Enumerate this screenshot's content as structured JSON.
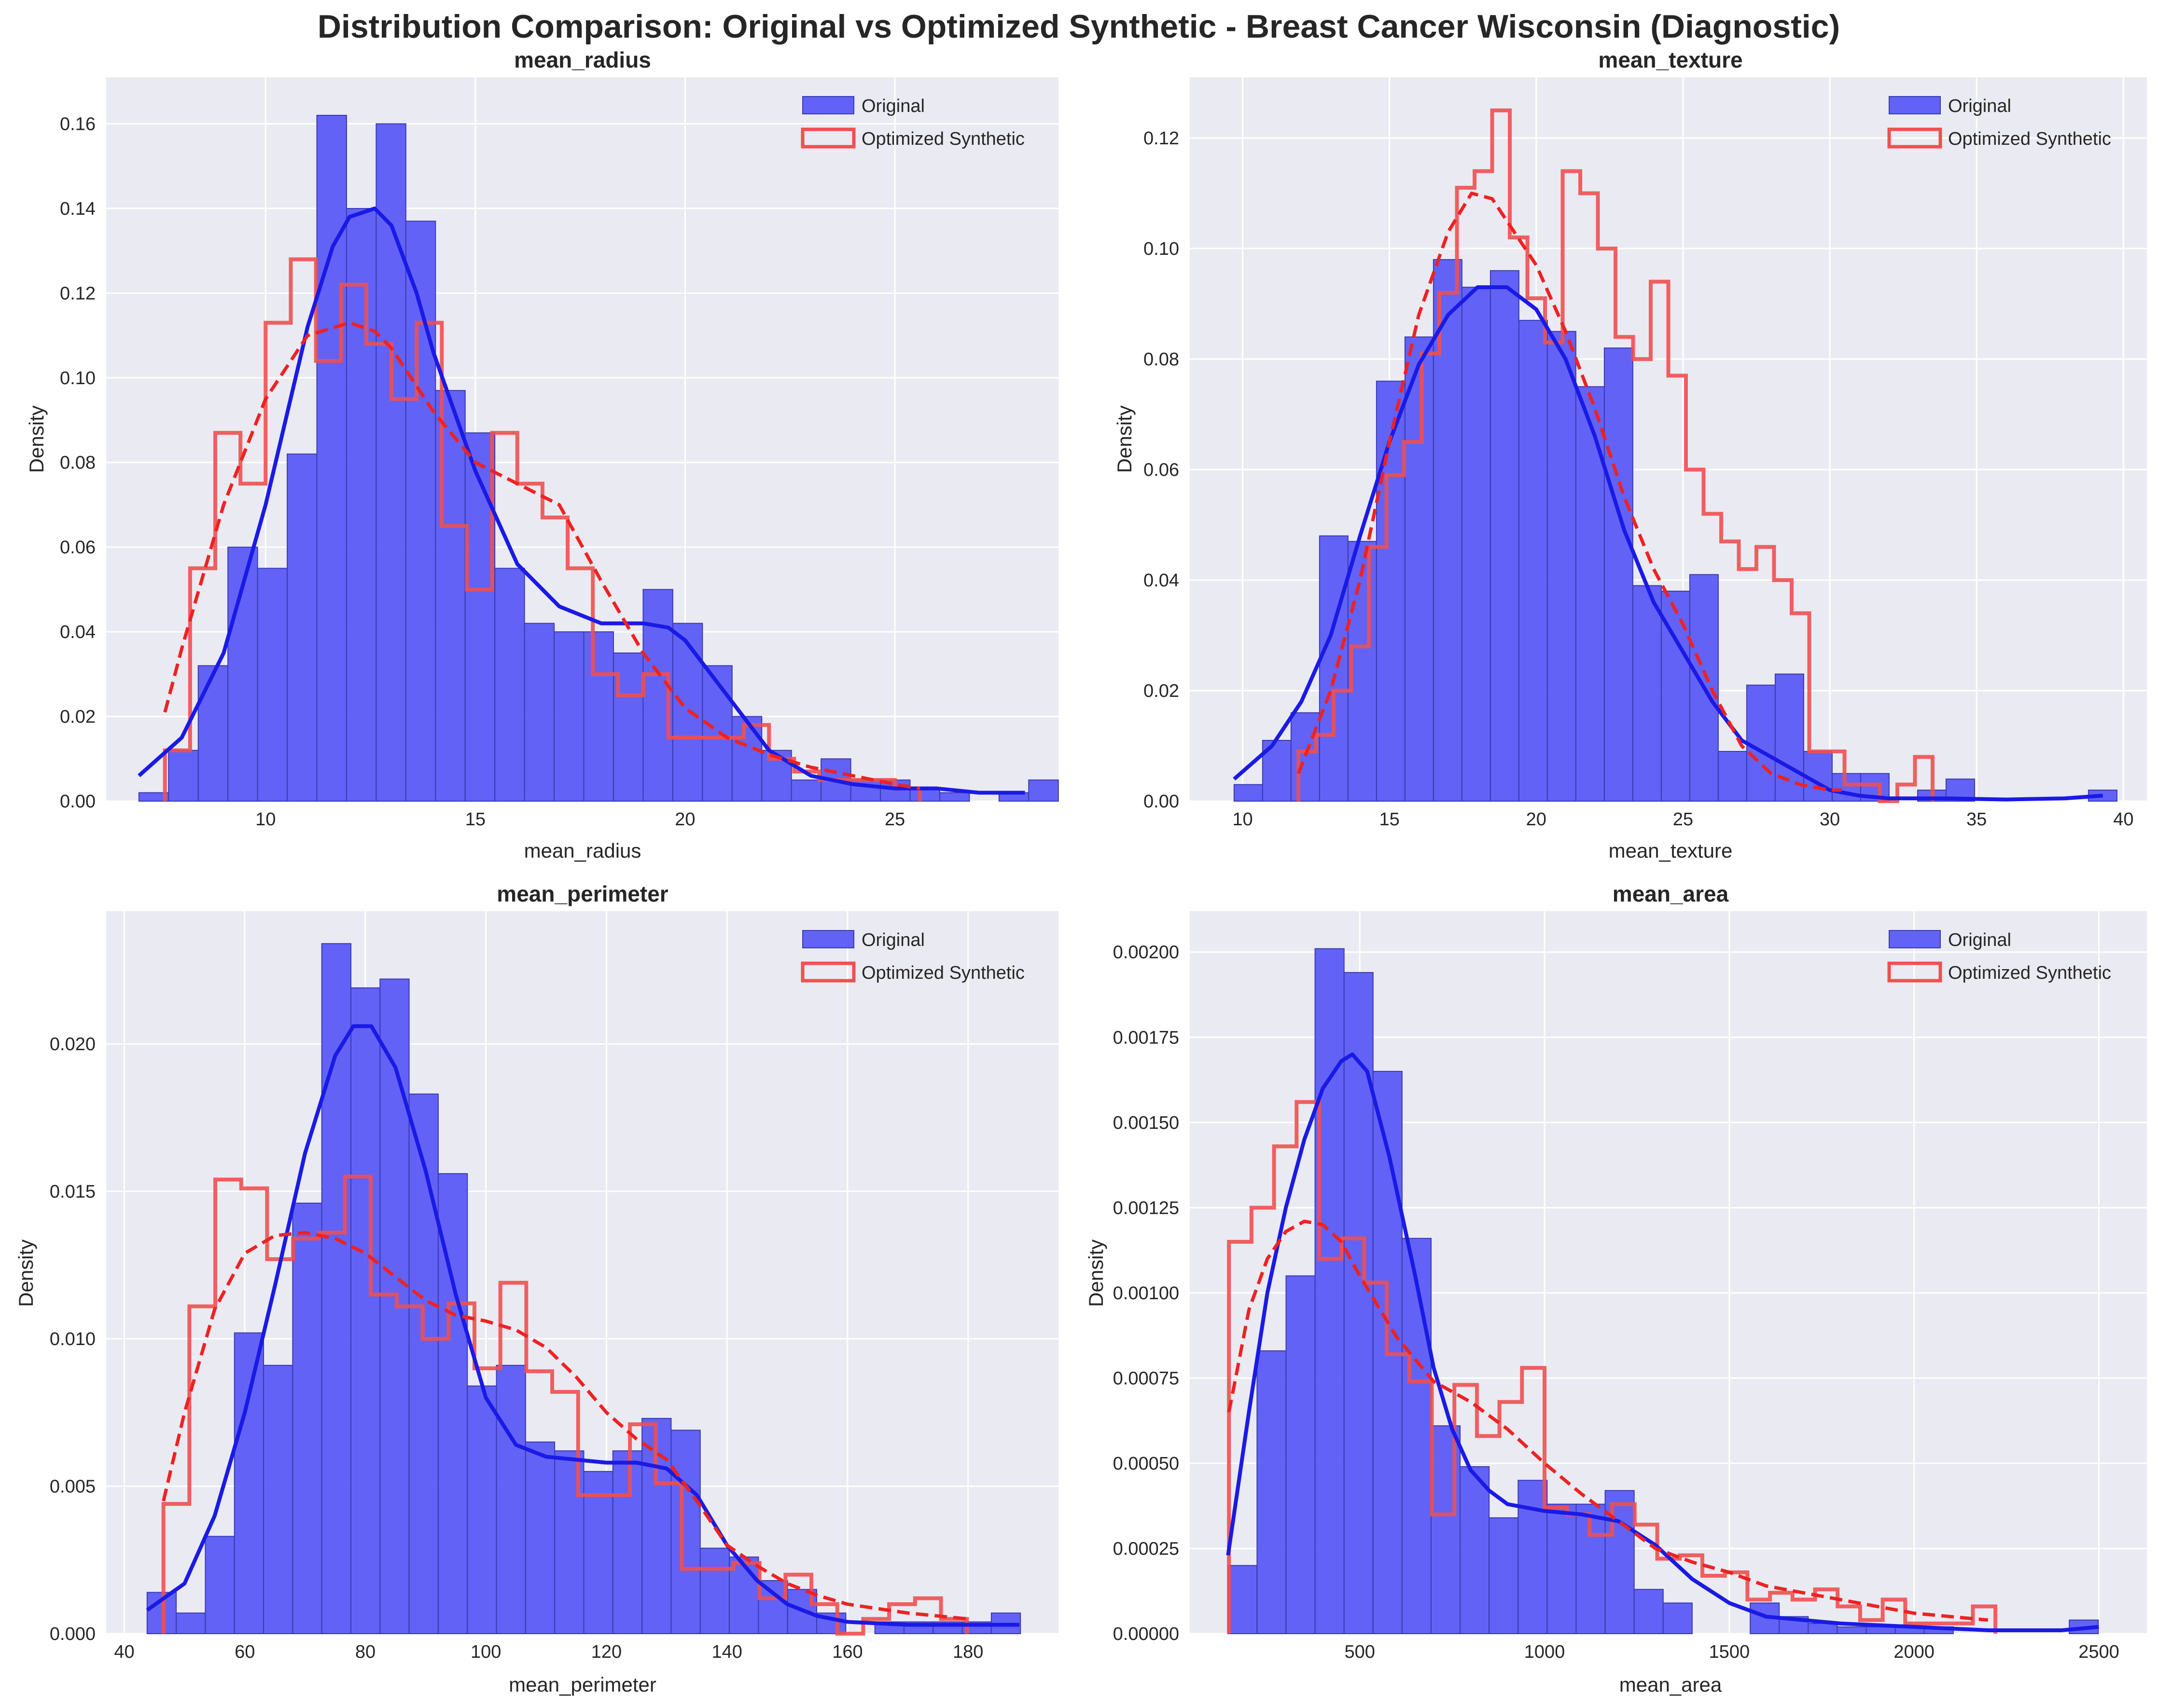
{
  "figure": {
    "title": "Distribution Comparison: Original vs Optimized Synthetic - Breast Cancer Wisconsin (Diagnostic)"
  },
  "colors": {
    "original_fill": "#5b5bf5",
    "original_edge": "#3a3ab0",
    "original_kde": "#1a1ae6",
    "synthetic": "#f05050",
    "synthetic_kde": "#ee2222",
    "panel_bg": "#eaeaf2"
  },
  "chart_data": [
    {
      "type": "bar",
      "title": "mean_radius",
      "xlabel": "mean_radius",
      "ylabel": "Density",
      "xlim": [
        6.2,
        28.9
      ],
      "ylim": [
        0,
        0.171
      ],
      "xticks": [
        10,
        15,
        20,
        25
      ],
      "yticks": [
        0,
        0.02,
        0.04,
        0.06,
        0.08,
        0.1,
        0.12,
        0.14,
        0.16
      ],
      "ytick_labels": [
        "0.00",
        "0.02",
        "0.04",
        "0.06",
        "0.08",
        "0.10",
        "0.12",
        "0.14",
        "0.16"
      ],
      "legend": {
        "position": "top-right",
        "entries": [
          "Original",
          "Optimized Synthetic"
        ]
      },
      "grid": true,
      "series": [
        {
          "name": "Original",
          "kind": "histogram",
          "bin_start": 6.98,
          "bin_width": 0.707,
          "values": [
            0.002,
            0.012,
            0.032,
            0.06,
            0.055,
            0.082,
            0.162,
            0.14,
            0.16,
            0.137,
            0.097,
            0.087,
            0.055,
            0.042,
            0.04,
            0.04,
            0.035,
            0.05,
            0.042,
            0.032,
            0.02,
            0.012,
            0.005,
            0.01,
            0.005,
            0.005,
            0.003,
            0.002,
            0.0,
            0.002,
            0.005
          ]
        },
        {
          "name": "Optimized Synthetic",
          "kind": "step",
          "bin_start": 7.6,
          "bin_width": 0.6,
          "values": [
            0.012,
            0.055,
            0.087,
            0.075,
            0.113,
            0.128,
            0.104,
            0.122,
            0.108,
            0.095,
            0.113,
            0.065,
            0.05,
            0.087,
            0.075,
            0.067,
            0.055,
            0.03,
            0.025,
            0.03,
            0.015,
            0.015,
            0.015,
            0.018,
            0.01,
            0.007,
            0.005,
            0.005,
            0.005,
            0.003
          ]
        },
        {
          "name": "Original KDE",
          "kind": "kde",
          "x": [
            6.98,
            8,
            9,
            10,
            11,
            11.6,
            12,
            12.6,
            13,
            13.6,
            14,
            15,
            16,
            17,
            18,
            19,
            19.6,
            20,
            21,
            22,
            23,
            24,
            25,
            26,
            27,
            28.1
          ],
          "y": [
            0.006,
            0.015,
            0.035,
            0.07,
            0.112,
            0.131,
            0.138,
            0.14,
            0.136,
            0.12,
            0.106,
            0.078,
            0.056,
            0.046,
            0.042,
            0.042,
            0.041,
            0.038,
            0.025,
            0.012,
            0.006,
            0.004,
            0.003,
            0.003,
            0.002,
            0.002
          ]
        },
        {
          "name": "Synthetic KDE",
          "kind": "kde_dashed",
          "x": [
            7.6,
            8,
            9,
            10,
            11,
            12,
            12.6,
            13,
            14,
            15,
            16,
            17,
            18,
            19,
            20,
            21,
            22,
            23,
            24,
            25,
            25.6
          ],
          "y": [
            0.021,
            0.036,
            0.07,
            0.095,
            0.11,
            0.113,
            0.111,
            0.107,
            0.092,
            0.08,
            0.075,
            0.07,
            0.052,
            0.035,
            0.022,
            0.015,
            0.011,
            0.008,
            0.006,
            0.004,
            0.003
          ]
        }
      ]
    },
    {
      "type": "bar",
      "title": "mean_texture",
      "xlabel": "mean_texture",
      "ylabel": "Density",
      "xlim": [
        8.2,
        40.8
      ],
      "ylim": [
        0,
        0.131
      ],
      "xticks": [
        10,
        15,
        20,
        25,
        30,
        35,
        40
      ],
      "yticks": [
        0,
        0.02,
        0.04,
        0.06,
        0.08,
        0.1,
        0.12
      ],
      "ytick_labels": [
        "0.00",
        "0.02",
        "0.04",
        "0.06",
        "0.08",
        "0.10",
        "0.12"
      ],
      "legend": {
        "position": "top-right",
        "entries": [
          "Original",
          "Optimized Synthetic"
        ]
      },
      "grid": true,
      "series": [
        {
          "name": "Original",
          "kind": "histogram",
          "bin_start": 9.71,
          "bin_width": 0.97,
          "values": [
            0.003,
            0.011,
            0.016,
            0.048,
            0.047,
            0.076,
            0.084,
            0.098,
            0.093,
            0.096,
            0.087,
            0.085,
            0.075,
            0.082,
            0.039,
            0.038,
            0.041,
            0.009,
            0.021,
            0.023,
            0.009,
            0.005,
            0.005,
            0.0,
            0.002,
            0.004,
            0.0,
            0.0,
            0.0,
            0.0,
            0.002
          ]
        },
        {
          "name": "Optimized Synthetic",
          "kind": "step",
          "bin_start": 11.9,
          "bin_width": 0.6,
          "values": [
            0.009,
            0.012,
            0.02,
            0.028,
            0.046,
            0.059,
            0.065,
            0.081,
            0.092,
            0.111,
            0.114,
            0.125,
            0.102,
            0.091,
            0.083,
            0.114,
            0.11,
            0.1,
            0.084,
            0.08,
            0.094,
            0.077,
            0.06,
            0.052,
            0.047,
            0.042,
            0.046,
            0.04,
            0.034,
            0.009,
            0.009,
            0.003,
            0.003,
            0.0,
            0.003,
            0.008
          ]
        },
        {
          "name": "Original KDE",
          "kind": "kde",
          "x": [
            9.71,
            11,
            12,
            13,
            14,
            15,
            16,
            17,
            18,
            19,
            20,
            21,
            22,
            23,
            24,
            25,
            26,
            27,
            28,
            29,
            30,
            31,
            32,
            33,
            34,
            36,
            38,
            39.3
          ],
          "y": [
            0.004,
            0.01,
            0.018,
            0.03,
            0.048,
            0.065,
            0.079,
            0.088,
            0.093,
            0.093,
            0.089,
            0.08,
            0.066,
            0.049,
            0.036,
            0.027,
            0.018,
            0.011,
            0.008,
            0.005,
            0.002,
            0.001,
            0.0005,
            0.0005,
            0.0005,
            0.0003,
            0.0005,
            0.001
          ]
        },
        {
          "name": "Synthetic KDE",
          "kind": "kde_dashed",
          "x": [
            11.9,
            13,
            14,
            15,
            16,
            17,
            17.8,
            18.5,
            19,
            20,
            21,
            22,
            23,
            24,
            25,
            26,
            27,
            28,
            29,
            30,
            30.4
          ],
          "y": [
            0.005,
            0.02,
            0.04,
            0.065,
            0.088,
            0.103,
            0.11,
            0.109,
            0.105,
            0.097,
            0.085,
            0.071,
            0.055,
            0.042,
            0.032,
            0.02,
            0.01,
            0.005,
            0.003,
            0.002,
            0.002
          ]
        }
      ]
    },
    {
      "type": "bar",
      "title": "mean_perimeter",
      "xlabel": "mean_perimeter",
      "ylabel": "Density",
      "xlim": [
        37,
        195
      ],
      "ylim": [
        0,
        0.0245
      ],
      "xticks": [
        40,
        60,
        80,
        100,
        120,
        140,
        160,
        180
      ],
      "yticks": [
        0,
        0.005,
        0.01,
        0.015,
        0.02
      ],
      "ytick_labels": [
        "0.000",
        "0.005",
        "0.010",
        "0.015",
        "0.020"
      ],
      "legend": {
        "position": "top-right",
        "entries": [
          "Original",
          "Optimized Synthetic"
        ]
      },
      "grid": true,
      "series": [
        {
          "name": "Original",
          "kind": "histogram",
          "bin_start": 43.79,
          "bin_width": 4.83,
          "values": [
            0.0014,
            0.0007,
            0.0033,
            0.0102,
            0.0091,
            0.0146,
            0.0234,
            0.0219,
            0.0222,
            0.0183,
            0.0156,
            0.0084,
            0.0091,
            0.0065,
            0.0062,
            0.0055,
            0.0062,
            0.0073,
            0.0069,
            0.0029,
            0.0026,
            0.0018,
            0.0015,
            0.0007,
            0.0,
            0.0004,
            0.0004,
            0.0004,
            0.0004,
            0.0007
          ]
        },
        {
          "name": "Optimized Synthetic",
          "kind": "step",
          "bin_start": 46.5,
          "bin_width": 4.3,
          "values": [
            0.0044,
            0.0111,
            0.0154,
            0.0151,
            0.0127,
            0.0134,
            0.0136,
            0.0155,
            0.0115,
            0.0111,
            0.01,
            0.0112,
            0.009,
            0.0119,
            0.0089,
            0.0082,
            0.0047,
            0.0047,
            0.0071,
            0.0051,
            0.0022,
            0.0022,
            0.0024,
            0.0012,
            0.002,
            0.001,
            0.0,
            0.0005,
            0.001,
            0.0012,
            0.0005
          ]
        },
        {
          "name": "Original KDE",
          "kind": "kde",
          "x": [
            43.8,
            50,
            55,
            60,
            65,
            70,
            75,
            78,
            81,
            85,
            90,
            95,
            100,
            105,
            110,
            115,
            120,
            125,
            130,
            135,
            140,
            145,
            150,
            155,
            160,
            170,
            180,
            188.5
          ],
          "y": [
            0.0008,
            0.0017,
            0.004,
            0.0075,
            0.0118,
            0.0163,
            0.0196,
            0.0206,
            0.0206,
            0.0192,
            0.0157,
            0.0115,
            0.008,
            0.0064,
            0.006,
            0.0059,
            0.0058,
            0.0058,
            0.0056,
            0.0047,
            0.003,
            0.0018,
            0.001,
            0.0006,
            0.0004,
            0.0003,
            0.0003,
            0.0003
          ]
        },
        {
          "name": "Synthetic KDE",
          "kind": "kde_dashed",
          "x": [
            46.5,
            50,
            55,
            60,
            65,
            70,
            75,
            80,
            85,
            90,
            95,
            100,
            105,
            110,
            115,
            120,
            125,
            130,
            135,
            140,
            145,
            150,
            155,
            160,
            170,
            180
          ],
          "y": [
            0.0045,
            0.0075,
            0.011,
            0.0129,
            0.0135,
            0.0136,
            0.0134,
            0.0129,
            0.0121,
            0.0113,
            0.0108,
            0.0106,
            0.0103,
            0.0097,
            0.0087,
            0.0075,
            0.0066,
            0.0059,
            0.0045,
            0.003,
            0.0023,
            0.0017,
            0.0013,
            0.001,
            0.0007,
            0.0005
          ]
        }
      ]
    },
    {
      "type": "bar",
      "title": "mean_area",
      "xlabel": "mean_area",
      "ylabel": "Density",
      "xlim": [
        40,
        2630
      ],
      "ylim": [
        0,
        0.00212
      ],
      "xticks": [
        500,
        1000,
        1500,
        2000,
        2500
      ],
      "yticks": [
        0,
        0.00025,
        0.0005,
        0.00075,
        0.001,
        0.00125,
        0.0015,
        0.00175,
        0.002
      ],
      "ytick_labels": [
        "0.00000",
        "0.00025",
        "0.00050",
        "0.00075",
        "0.00100",
        "0.00125",
        "0.00150",
        "0.00175",
        "0.00200"
      ],
      "legend": {
        "position": "top-right",
        "entries": [
          "Original",
          "Optimized Synthetic"
        ]
      },
      "grid": true,
      "series": [
        {
          "name": "Original",
          "kind": "histogram",
          "bin_start": 143.5,
          "bin_width": 78.5,
          "values": [
            0.0002,
            0.00083,
            0.00105,
            0.00201,
            0.00194,
            0.00165,
            0.00116,
            0.00061,
            0.00049,
            0.00034,
            0.00045,
            0.00038,
            0.00038,
            0.00042,
            0.00013,
            9e-05,
            0.0,
            0.0,
            9e-05,
            5e-05,
            3e-05,
            2e-05,
            2e-05,
            2e-05,
            2e-05,
            0.0,
            0.0,
            0.0,
            0.0,
            4e-05
          ]
        },
        {
          "name": "Optimized Synthetic",
          "kind": "step",
          "bin_start": 146,
          "bin_width": 61,
          "values": [
            0.00115,
            0.00125,
            0.00143,
            0.00156,
            0.0011,
            0.00116,
            0.00103,
            0.00082,
            0.00074,
            0.00035,
            0.00073,
            0.00058,
            0.00068,
            0.00078,
            0.00037,
            0.00035,
            0.00029,
            0.00038,
            0.00032,
            0.00022,
            0.00023,
            0.00017,
            0.00018,
            0.0001,
            0.00012,
            0.0001,
            0.00013,
            8e-05,
            4e-05,
            0.0001,
            3e-05,
            3e-05,
            3e-05,
            8e-05
          ]
        },
        {
          "name": "Original KDE",
          "kind": "kde",
          "x": [
            143.5,
            200,
            250,
            300,
            350,
            400,
            450,
            480,
            520,
            580,
            650,
            700,
            750,
            800,
            850,
            900,
            1000,
            1100,
            1200,
            1300,
            1400,
            1500,
            1600,
            1800,
            2000,
            2200,
            2400,
            2500
          ],
          "y": [
            0.00023,
            0.00065,
            0.001,
            0.00125,
            0.00145,
            0.0016,
            0.00168,
            0.0017,
            0.00165,
            0.0014,
            0.00105,
            0.00078,
            0.0006,
            0.00048,
            0.00042,
            0.00038,
            0.00036,
            0.00035,
            0.00033,
            0.00026,
            0.00016,
            9e-05,
            5e-05,
            3e-05,
            2e-05,
            1e-05,
            1e-05,
            2e-05
          ]
        },
        {
          "name": "Synthetic KDE",
          "kind": "kde_dashed",
          "x": [
            146,
            200,
            250,
            300,
            350,
            400,
            450,
            500,
            600,
            700,
            800,
            900,
            1000,
            1100,
            1200,
            1300,
            1400,
            1500,
            1600,
            1700,
            1800,
            1900,
            2000,
            2100,
            2200
          ],
          "y": [
            0.00065,
            0.00095,
            0.0011,
            0.00118,
            0.00121,
            0.0012,
            0.00115,
            0.00105,
            0.00087,
            0.00074,
            0.00068,
            0.0006,
            0.0005,
            0.00041,
            0.00033,
            0.00025,
            0.00021,
            0.00018,
            0.00014,
            0.00012,
            0.0001,
            8e-05,
            6e-05,
            5e-05,
            4e-05
          ]
        }
      ]
    }
  ]
}
